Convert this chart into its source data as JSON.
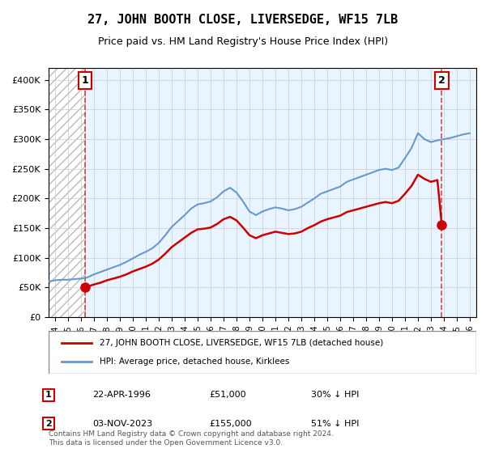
{
  "title": "27, JOHN BOOTH CLOSE, LIVERSEDGE, WF15 7LB",
  "subtitle": "Price paid vs. HM Land Registry's House Price Index (HPI)",
  "property_label": "27, JOHN BOOTH CLOSE, LIVERSEDGE, WF15 7LB (detached house)",
  "hpi_label": "HPI: Average price, detached house, Kirklees",
  "footnote": "Contains HM Land Registry data © Crown copyright and database right 2024.\nThis data is licensed under the Open Government Licence v3.0.",
  "transactions": [
    {
      "id": 1,
      "date": "22-APR-1996",
      "price": 51000,
      "pct": "30% ↓ HPI",
      "year": 1996.31
    },
    {
      "id": 2,
      "date": "03-NOV-2023",
      "price": 155000,
      "pct": "51% ↓ HPI",
      "year": 2023.84
    }
  ],
  "property_color": "#cc0000",
  "hpi_color": "#6699cc",
  "vline_color": "#cc0000",
  "background_hatch_color": "#dddddd",
  "ylim": [
    0,
    420000
  ],
  "xlim_left": 1993.5,
  "xlim_right": 2026.5,
  "yticks": [
    0,
    50000,
    100000,
    150000,
    200000,
    250000,
    300000,
    350000,
    400000
  ],
  "ylabel_format": "£{0}K",
  "xticks": [
    1994,
    1995,
    1996,
    1997,
    1998,
    1999,
    2000,
    2001,
    2002,
    2003,
    2004,
    2005,
    2006,
    2007,
    2008,
    2009,
    2010,
    2011,
    2012,
    2013,
    2014,
    2015,
    2016,
    2017,
    2018,
    2019,
    2020,
    2021,
    2022,
    2023,
    2024,
    2025,
    2026
  ],
  "hpi_data": {
    "years": [
      1993.5,
      1994,
      1994.5,
      1995,
      1995.5,
      1996,
      1996.3,
      1996.5,
      1997,
      1997.5,
      1998,
      1998.5,
      1999,
      1999.5,
      2000,
      2000.5,
      2001,
      2001.5,
      2002,
      2002.5,
      2003,
      2003.5,
      2004,
      2004.5,
      2005,
      2005.5,
      2006,
      2006.5,
      2007,
      2007.5,
      2008,
      2008.5,
      2009,
      2009.5,
      2010,
      2010.5,
      2011,
      2011.5,
      2012,
      2012.5,
      2013,
      2013.5,
      2014,
      2014.5,
      2015,
      2015.5,
      2016,
      2016.5,
      2017,
      2017.5,
      2018,
      2018.5,
      2019,
      2019.5,
      2020,
      2020.5,
      2021,
      2021.5,
      2022,
      2022.5,
      2023,
      2023.5,
      2024,
      2024.5,
      2025,
      2025.5,
      2026
    ],
    "values": [
      60000,
      62000,
      63000,
      63000,
      64000,
      65000,
      65500,
      67000,
      72000,
      76000,
      80000,
      84000,
      88000,
      93000,
      99000,
      105000,
      110000,
      116000,
      125000,
      138000,
      152000,
      162000,
      172000,
      183000,
      190000,
      192000,
      195000,
      202000,
      212000,
      218000,
      210000,
      195000,
      178000,
      172000,
      178000,
      182000,
      185000,
      183000,
      180000,
      182000,
      186000,
      193000,
      200000,
      208000,
      212000,
      216000,
      220000,
      228000,
      232000,
      236000,
      240000,
      244000,
      248000,
      250000,
      248000,
      252000,
      268000,
      285000,
      310000,
      300000,
      295000,
      298000,
      300000,
      302000,
      305000,
      308000,
      310000
    ]
  },
  "property_data": {
    "years": [
      1996.31,
      1996.5,
      1997,
      1997.5,
      1998,
      1998.5,
      1999,
      1999.5,
      2000,
      2000.5,
      2001,
      2001.5,
      2002,
      2002.5,
      2003,
      2003.5,
      2004,
      2004.5,
      2005,
      2005.5,
      2006,
      2006.5,
      2007,
      2007.5,
      2008,
      2008.5,
      2009,
      2009.5,
      2010,
      2010.5,
      2011,
      2011.5,
      2012,
      2012.5,
      2013,
      2013.5,
      2014,
      2014.5,
      2015,
      2015.5,
      2016,
      2016.5,
      2017,
      2017.5,
      2018,
      2018.5,
      2019,
      2019.5,
      2020,
      2020.5,
      2021,
      2021.5,
      2022,
      2022.5,
      2023,
      2023.5,
      2023.84
    ],
    "values": [
      51000,
      51500,
      55000,
      58000,
      62000,
      65000,
      68000,
      72000,
      77000,
      81000,
      85000,
      90000,
      97000,
      107000,
      118000,
      126000,
      134000,
      142000,
      148000,
      149000,
      151000,
      157000,
      165000,
      169000,
      163000,
      151000,
      138000,
      133000,
      138000,
      141000,
      144000,
      142000,
      140000,
      141000,
      144000,
      150000,
      155000,
      161000,
      165000,
      168000,
      171000,
      177000,
      180000,
      183000,
      186000,
      189000,
      192000,
      194000,
      192000,
      196000,
      208000,
      221000,
      240000,
      233000,
      228000,
      231000,
      155000
    ]
  }
}
